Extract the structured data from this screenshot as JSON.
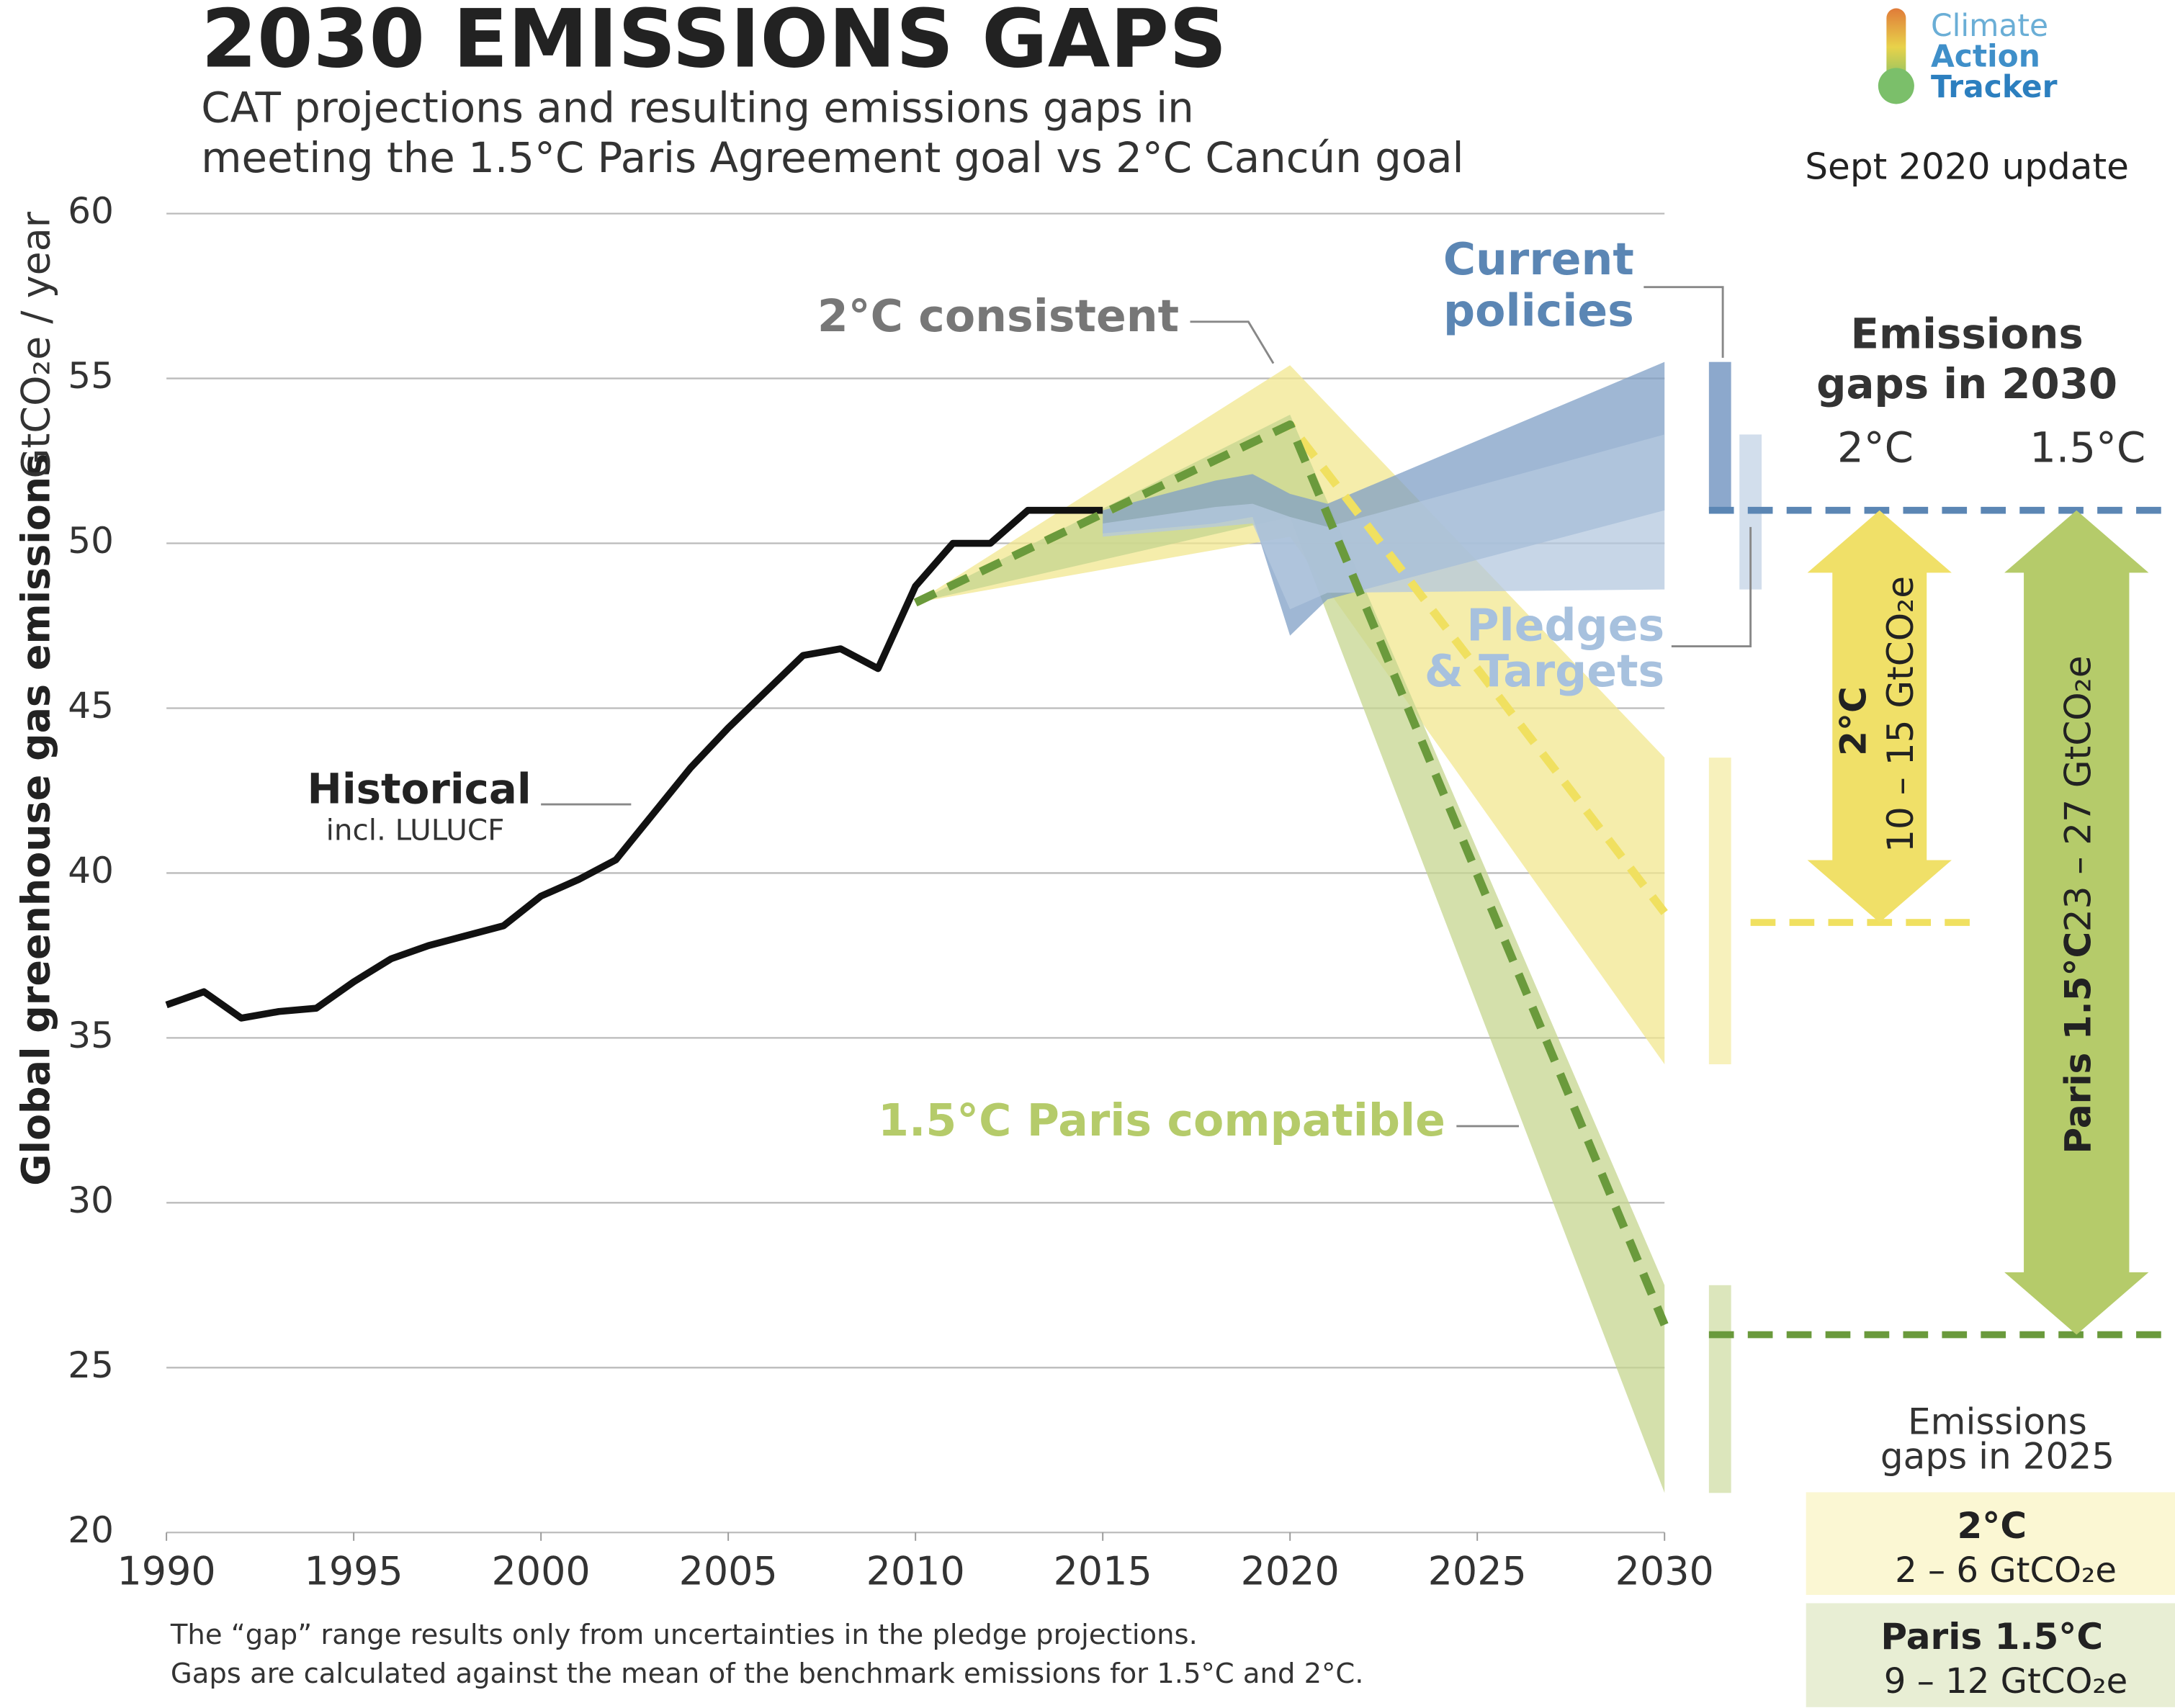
{
  "chart_data": {
    "type": "line",
    "title": "2030 EMISSIONS GAPS",
    "subtitle": [
      "CAT projections and resulting emissions gaps in",
      "meeting the 1.5°C Paris Agreement goal vs 2°C Cancún goal"
    ],
    "logo": [
      "Climate",
      "Action",
      "Tracker"
    ],
    "update": "Sept 2020 update",
    "y_label": "Global greenhouse gas emissions",
    "y_unit": "GtCO₂e / year",
    "xlim": [
      1990,
      2030
    ],
    "xticks": [
      1990,
      1995,
      2000,
      2005,
      2010,
      2015,
      2020,
      2025,
      2030
    ],
    "ylim": [
      20,
      60
    ],
    "yticks": [
      20,
      25,
      30,
      35,
      40,
      45,
      50,
      55,
      60
    ],
    "grid": true,
    "bands": [
      {
        "label": [
          "2°C consistent"
        ],
        "color": "#f2e78f",
        "x": [
          2010,
          2020,
          2030
        ],
        "upper": [
          48.2,
          55.4,
          43.5
        ],
        "lower": [
          48.2,
          50.2,
          34.2
        ]
      },
      {
        "label": [
          "1.5°C Paris compatible"
        ],
        "color": "#c5d58f",
        "x": [
          2010,
          2020,
          2030
        ],
        "upper": [
          48.2,
          53.9,
          27.5
        ],
        "lower": [
          48.2,
          50.8,
          21.2
        ]
      },
      {
        "label": [
          "Current",
          "policies"
        ],
        "color": "#7f9fc6",
        "x": [
          2015,
          2018,
          2019,
          2020,
          2021,
          2030
        ],
        "upper": [
          51.0,
          51.9,
          52.1,
          51.5,
          51.2,
          55.5
        ],
        "lower": [
          50.3,
          50.6,
          50.8,
          47.2,
          48.3,
          51.0
        ]
      },
      {
        "label": [
          "Pledges",
          "& Targets"
        ],
        "color": "#b4c8df",
        "x": [
          2015,
          2018,
          2019,
          2020,
          2021,
          2030
        ],
        "upper": [
          50.6,
          51.1,
          51.2,
          50.8,
          50.5,
          53.3
        ],
        "lower": [
          50.2,
          50.5,
          50.6,
          48.0,
          48.5,
          48.6
        ]
      }
    ],
    "series": [
      {
        "name": "Historical",
        "note": "incl. LULUCF",
        "color": "#111111",
        "x": [
          1990,
          1991,
          1992,
          1993,
          1994,
          1995,
          1996,
          1997,
          1998,
          1999,
          2000,
          2001,
          2002,
          2003,
          2004,
          2005,
          2006,
          2007,
          2008,
          2009,
          2010,
          2011,
          2012,
          2013,
          2014,
          2015
        ],
        "values": [
          36.0,
          36.4,
          35.6,
          35.8,
          35.9,
          36.7,
          37.4,
          37.8,
          38.1,
          38.4,
          39.3,
          39.8,
          40.4,
          41.8,
          43.2,
          44.4,
          45.5,
          46.6,
          46.8,
          46.2,
          48.7,
          50.0,
          50.0,
          51.0,
          51.0,
          51.0
        ]
      },
      {
        "color": "#f0e060",
        "x": [
          2010,
          2020,
          2030
        ],
        "values": [
          48.2,
          53.6,
          38.8
        ]
      },
      {
        "color": "#6a9a3c",
        "x": [
          2010,
          2020,
          2030
        ],
        "values": [
          48.2,
          53.6,
          26.3
        ]
      }
    ],
    "reference_lines": [
      {
        "value": 51.0,
        "color": "#5b86b4"
      },
      {
        "value": 38.5,
        "color": "#f0e060"
      },
      {
        "value": 26.0,
        "color": "#6a9a3c"
      }
    ],
    "gaps_2030": {
      "title": [
        "Emissions",
        "gaps in 2030"
      ],
      "columns": [
        "2°C",
        "1.5°C"
      ],
      "arrows": [
        {
          "label": "2°C",
          "range": "10 – 15  GtCO₂e",
          "from": 51.0,
          "to": 38.5,
          "color": "#f0e068"
        },
        {
          "label": "Paris 1.5°C",
          "range": "23 – 27  GtCO₂e",
          "from": 51.0,
          "to": 26.0,
          "color": "#b5cb6a"
        }
      ]
    },
    "gaps_2025": {
      "title": [
        "Emissions",
        "gaps in 2025"
      ],
      "boxes": [
        {
          "label": "2°C",
          "range": "2 – 6  GtCO₂e",
          "color": "#fbf7d3"
        },
        {
          "label": "Paris 1.5°C",
          "range": "9 – 12  GtCO₂e",
          "color": "#e8eed4"
        }
      ]
    },
    "footnotes": [
      "The “gap” range results only from uncertainties in the pledge projections.",
      "Gaps are calculated against the mean of the benchmark emissions for 1.5°C and 2°C."
    ]
  }
}
